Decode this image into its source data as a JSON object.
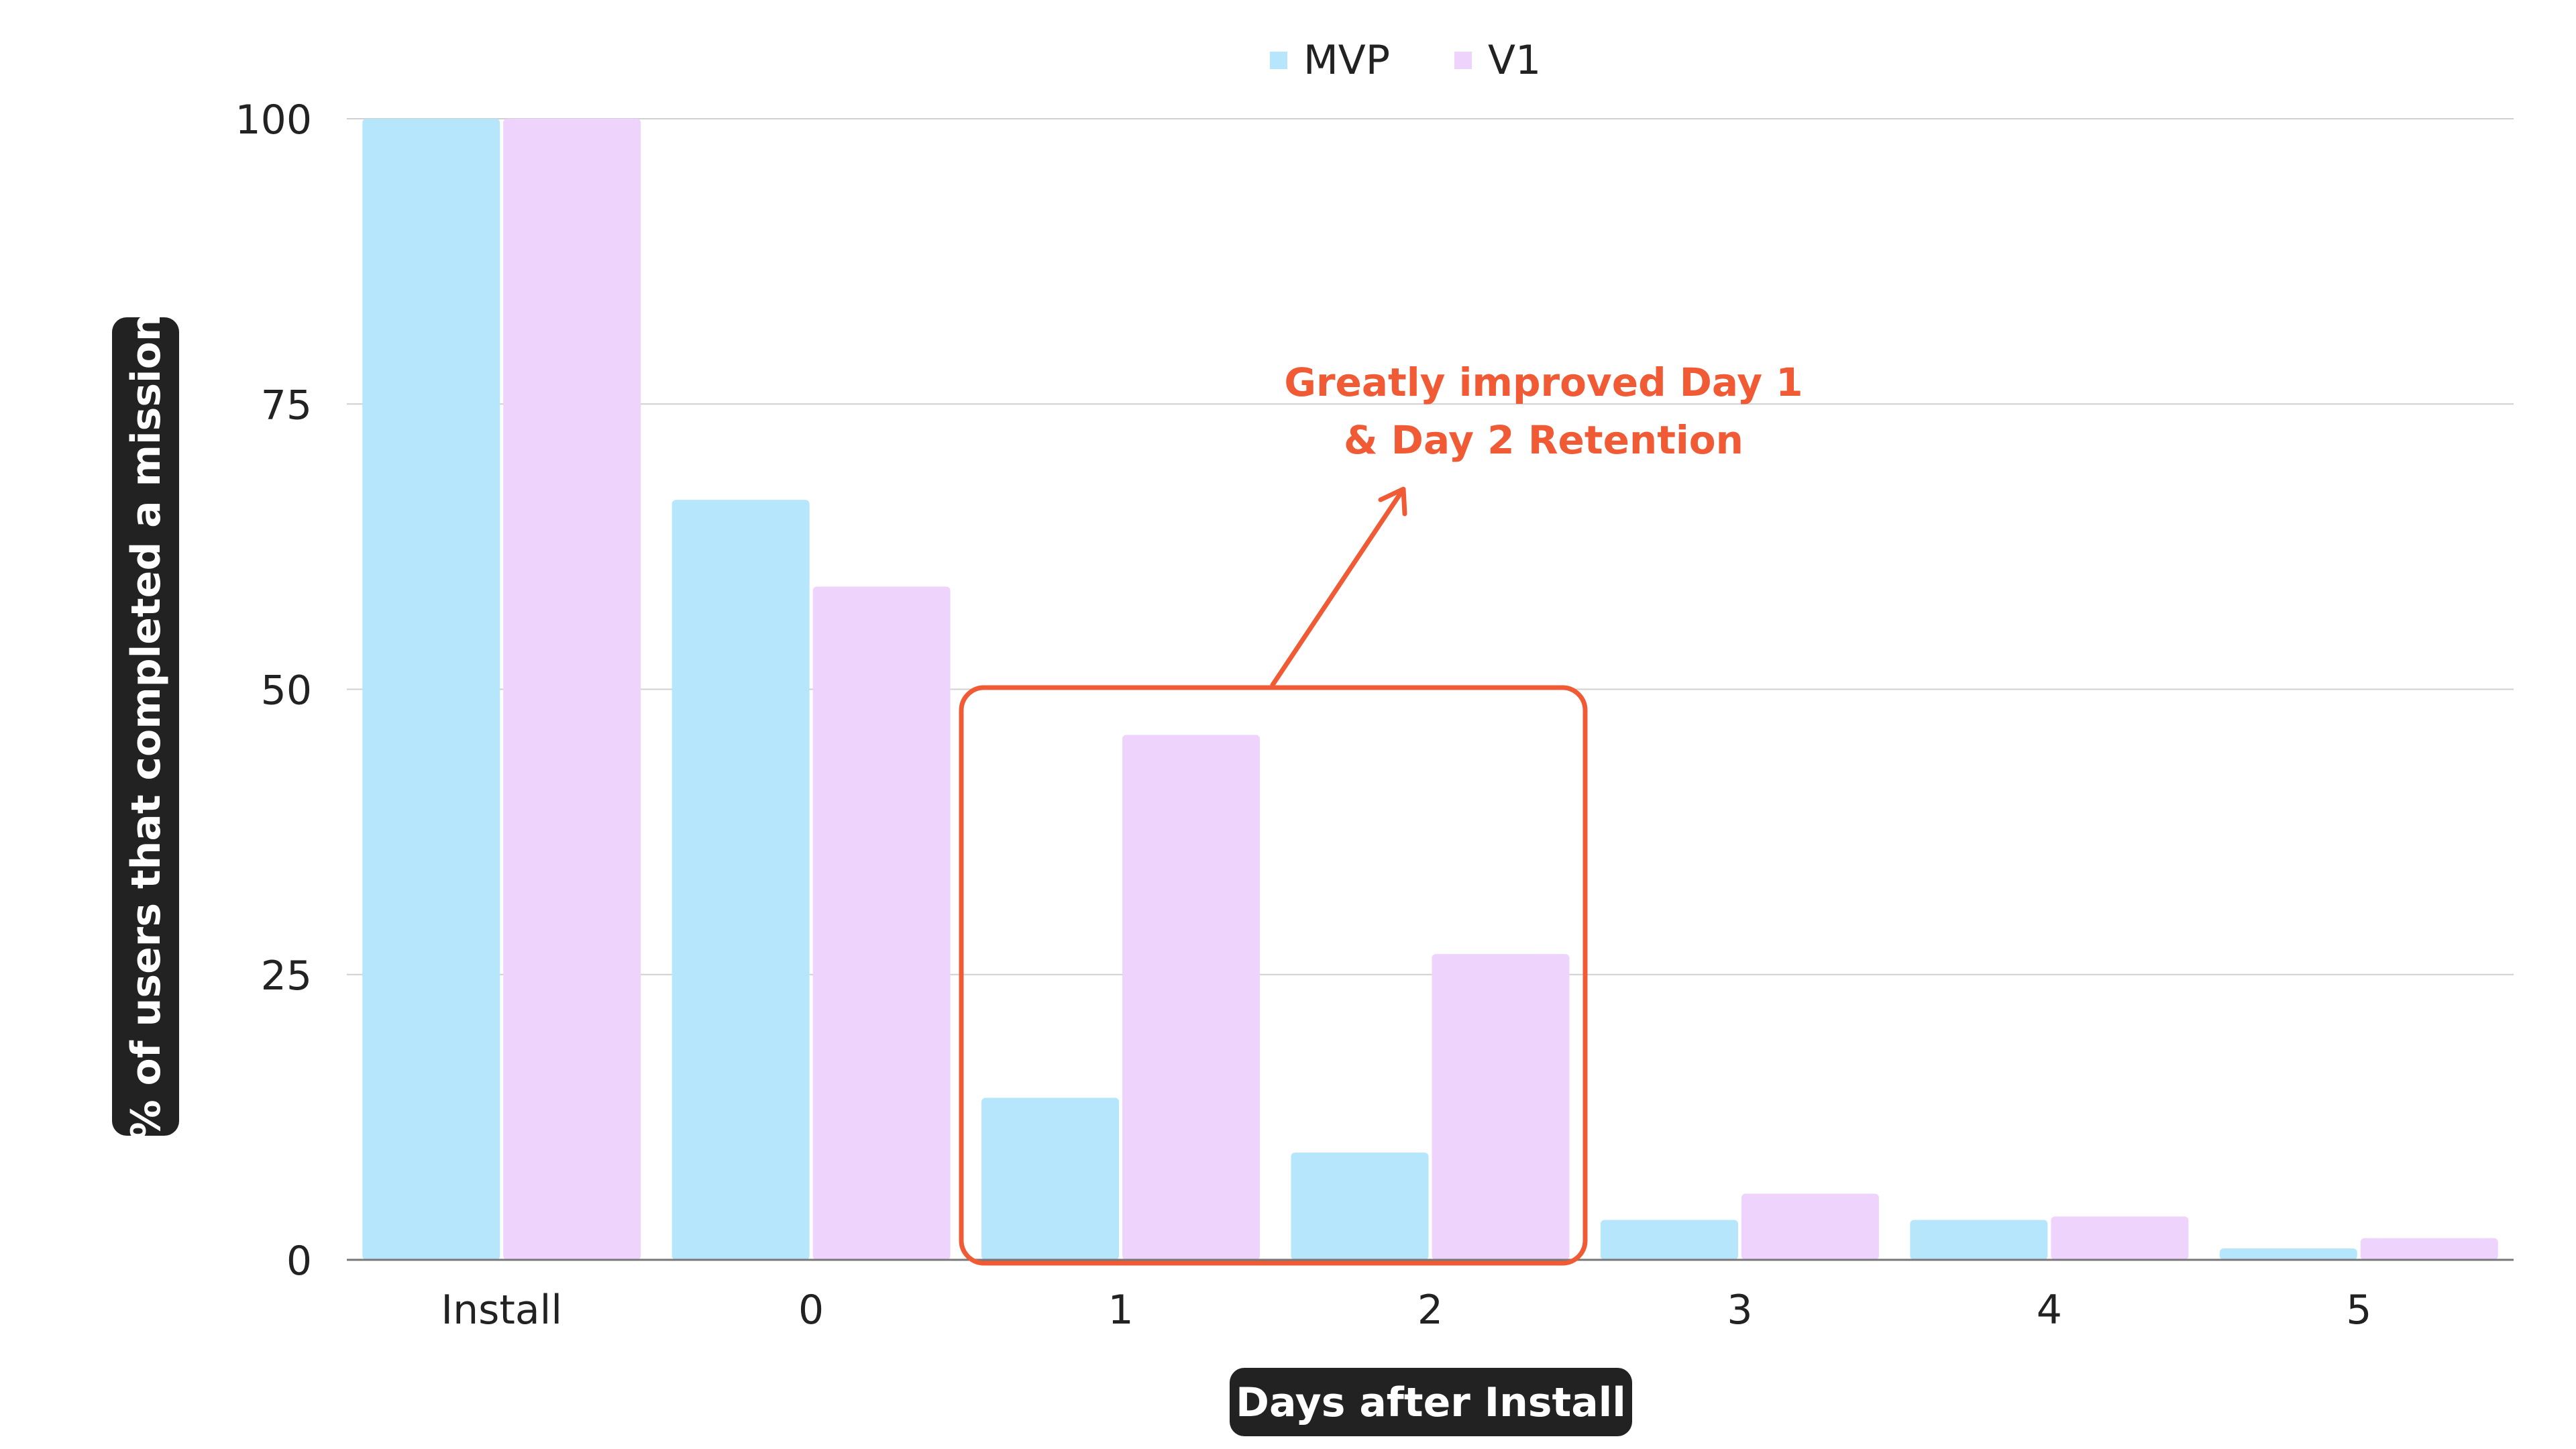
{
  "chart_data": {
    "type": "bar",
    "categories": [
      "Install",
      "0",
      "1",
      "2",
      "3",
      "4",
      "5"
    ],
    "series": [
      {
        "name": "MVP",
        "color": "#b5e6fb",
        "values": [
          100,
          66.6,
          14.2,
          9.4,
          3.5,
          3.5,
          1.0
        ]
      },
      {
        "name": "V1",
        "color": "#eed4fc",
        "values": [
          100,
          59.0,
          46.0,
          26.8,
          5.8,
          3.8,
          1.9
        ]
      }
    ],
    "xlabel": "Days after Install",
    "ylabel": "% of users that completed a mission",
    "ylim": [
      0,
      100
    ],
    "yticks": [
      0,
      25,
      50,
      75,
      100
    ],
    "grid": true,
    "legend_position": "top-center",
    "annotation": {
      "lines": [
        "Greatly improved Day 1",
        "& Day 2 Retention"
      ],
      "highlighted_categories": [
        "1",
        "2"
      ],
      "color": "#f05a35"
    }
  }
}
